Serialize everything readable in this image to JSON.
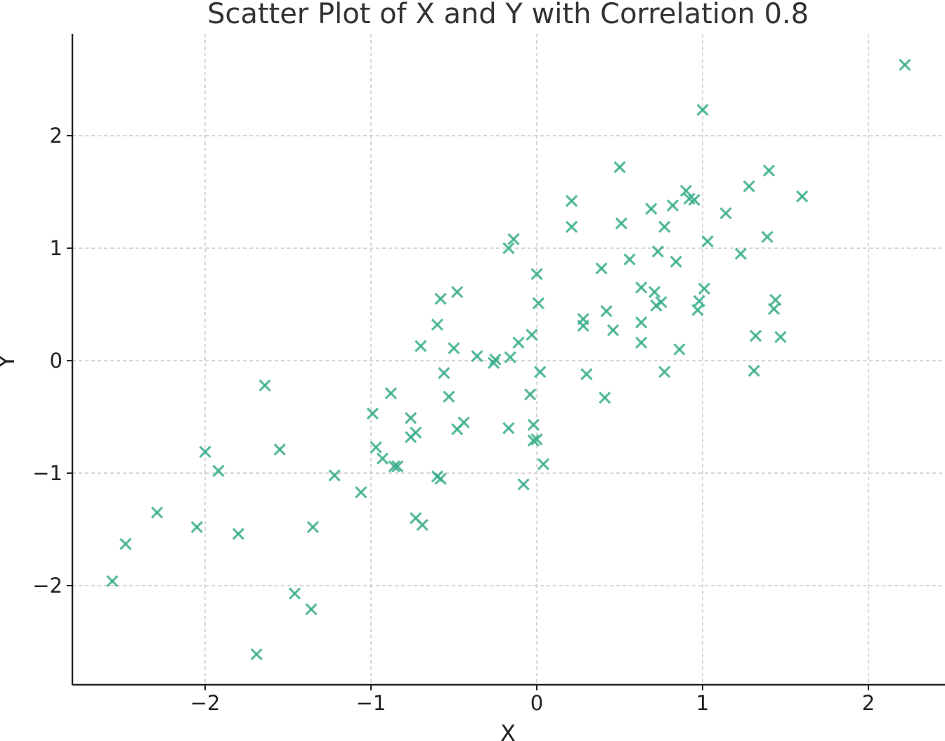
{
  "chart_data": {
    "type": "scatter",
    "title": "Scatter Plot of X and Y with Correlation 0.8",
    "xlabel": "X",
    "ylabel": "Y",
    "xlim": [
      -2.8,
      2.45
    ],
    "ylim": [
      -2.85,
      2.9
    ],
    "xticks": [
      -2,
      -1,
      0,
      1,
      2
    ],
    "yticks": [
      -2,
      -1,
      0,
      1,
      2
    ],
    "xtick_labels": [
      "−2",
      "−1",
      "0",
      "1",
      "2"
    ],
    "ytick_labels": [
      "−2",
      "−1",
      "0",
      "1",
      "2"
    ],
    "grid": true,
    "marker": "x",
    "color": "#3aae8c",
    "series": [
      {
        "points": [
          [
            2.22,
            2.63
          ],
          [
            1.0,
            2.23
          ],
          [
            0.5,
            1.72
          ],
          [
            1.4,
            1.69
          ],
          [
            1.28,
            1.55
          ],
          [
            1.6,
            1.46
          ],
          [
            0.9,
            1.51
          ],
          [
            0.92,
            1.44
          ],
          [
            0.95,
            1.43
          ],
          [
            0.82,
            1.38
          ],
          [
            0.69,
            1.35
          ],
          [
            1.14,
            1.31
          ],
          [
            0.21,
            1.42
          ],
          [
            0.51,
            1.22
          ],
          [
            0.77,
            1.19
          ],
          [
            0.21,
            1.19
          ],
          [
            -0.14,
            1.08
          ],
          [
            -0.17,
            1.0
          ],
          [
            1.03,
            1.06
          ],
          [
            1.39,
            1.1
          ],
          [
            1.23,
            0.95
          ],
          [
            0.73,
            0.97
          ],
          [
            0.56,
            0.9
          ],
          [
            0.84,
            0.88
          ],
          [
            0.39,
            0.82
          ],
          [
            0.0,
            0.77
          ],
          [
            0.63,
            0.65
          ],
          [
            1.01,
            0.64
          ],
          [
            0.71,
            0.61
          ],
          [
            -0.48,
            0.61
          ],
          [
            -0.58,
            0.55
          ],
          [
            0.98,
            0.53
          ],
          [
            1.44,
            0.54
          ],
          [
            0.75,
            0.52
          ],
          [
            0.72,
            0.49
          ],
          [
            0.01,
            0.51
          ],
          [
            0.97,
            0.45
          ],
          [
            1.43,
            0.46
          ],
          [
            0.42,
            0.44
          ],
          [
            0.28,
            0.37
          ],
          [
            0.63,
            0.34
          ],
          [
            0.28,
            0.31
          ],
          [
            -0.6,
            0.32
          ],
          [
            0.46,
            0.27
          ],
          [
            1.32,
            0.22
          ],
          [
            1.47,
            0.21
          ],
          [
            -0.03,
            0.23
          ],
          [
            -0.11,
            0.16
          ],
          [
            0.63,
            0.16
          ],
          [
            -0.7,
            0.13
          ],
          [
            -0.5,
            0.11
          ],
          [
            0.86,
            0.1
          ],
          [
            -0.36,
            0.04
          ],
          [
            -0.16,
            0.03
          ],
          [
            -0.25,
            0.01
          ],
          [
            -0.26,
            -0.02
          ],
          [
            0.02,
            -0.1
          ],
          [
            0.77,
            -0.1
          ],
          [
            1.31,
            -0.09
          ],
          [
            -0.56,
            -0.11
          ],
          [
            0.3,
            -0.12
          ],
          [
            -0.88,
            -0.29
          ],
          [
            -0.04,
            -0.3
          ],
          [
            -0.53,
            -0.32
          ],
          [
            0.41,
            -0.33
          ],
          [
            -0.99,
            -0.47
          ],
          [
            -0.76,
            -0.51
          ],
          [
            -0.44,
            -0.55
          ],
          [
            -0.02,
            -0.57
          ],
          [
            -0.17,
            -0.6
          ],
          [
            -0.48,
            -0.61
          ],
          [
            -0.73,
            -0.64
          ],
          [
            -0.76,
            -0.68
          ],
          [
            -0.02,
            -0.71
          ],
          [
            0.0,
            -0.7
          ],
          [
            -0.97,
            -0.77
          ],
          [
            -0.93,
            -0.87
          ],
          [
            -0.86,
            -0.94
          ],
          [
            -0.84,
            -0.94
          ],
          [
            0.04,
            -0.92
          ],
          [
            -1.64,
            -0.22
          ],
          [
            -1.55,
            -0.79
          ],
          [
            -2.0,
            -0.81
          ],
          [
            -1.92,
            -0.98
          ],
          [
            -1.22,
            -1.02
          ],
          [
            -0.6,
            -1.03
          ],
          [
            -0.58,
            -1.05
          ],
          [
            -0.08,
            -1.1
          ],
          [
            -1.06,
            -1.17
          ],
          [
            -2.29,
            -1.35
          ],
          [
            -0.73,
            -1.4
          ],
          [
            -0.69,
            -1.46
          ],
          [
            -2.05,
            -1.48
          ],
          [
            -1.35,
            -1.48
          ],
          [
            -1.8,
            -1.54
          ],
          [
            -2.48,
            -1.63
          ],
          [
            -2.56,
            -1.96
          ],
          [
            -1.46,
            -2.07
          ],
          [
            -1.36,
            -2.21
          ],
          [
            -1.69,
            -2.61
          ]
        ]
      }
    ]
  }
}
